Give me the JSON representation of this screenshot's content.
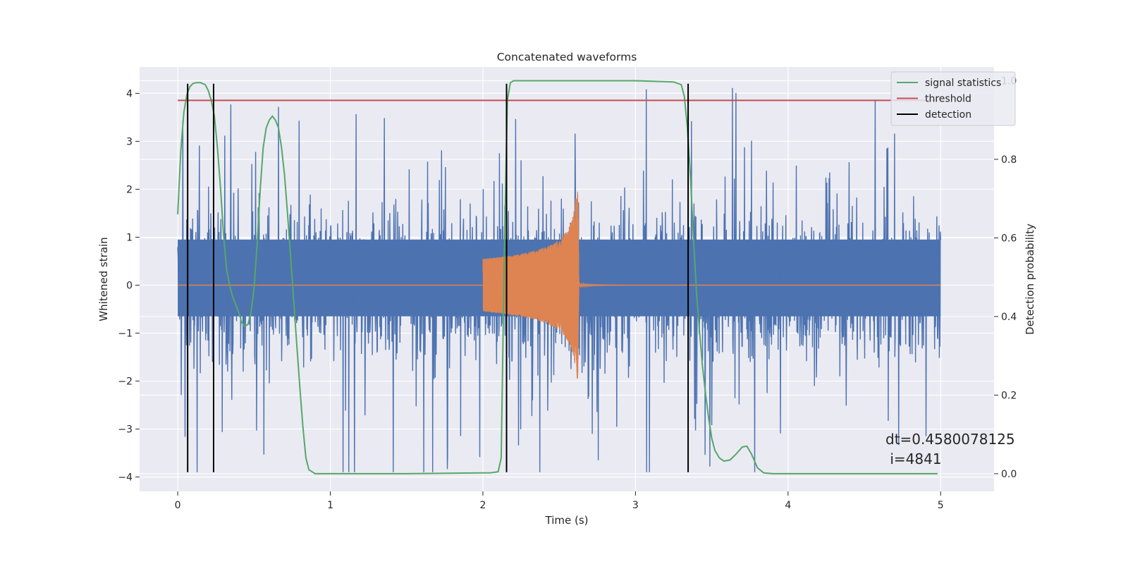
{
  "chart_data": {
    "type": "line",
    "title": "Concatenated waveforms",
    "xlabel": "Time (s)",
    "ylabel": "Whitened strain",
    "y2label": "Detection probability",
    "xlim": [
      -0.25,
      5.35
    ],
    "ylim": [
      -4.3,
      4.55
    ],
    "y2lim": [
      -0.045,
      1.035
    ],
    "x_ticks": [
      0,
      1,
      2,
      3,
      4,
      5
    ],
    "x_tick_labels": [
      "0",
      "1",
      "2",
      "3",
      "4",
      "5"
    ],
    "y_ticks": [
      -4,
      -3,
      -2,
      -1,
      0,
      1,
      2,
      3,
      4
    ],
    "y_tick_labels": [
      "−4",
      "−3",
      "−2",
      "−1",
      "0",
      "1",
      "2",
      "3",
      "4"
    ],
    "y2_ticks": [
      0.0,
      0.2,
      0.4,
      0.6,
      0.8,
      1.0
    ],
    "y2_tick_labels": [
      "0.0",
      "0.2",
      "0.4",
      "0.6",
      "0.8",
      "1.0"
    ],
    "grid": true,
    "legend_position": "top-right",
    "series": [
      {
        "name": "signal statistics",
        "axis": "right",
        "color": "#55a868",
        "x": [
          0.0,
          0.02,
          0.04,
          0.06,
          0.08,
          0.1,
          0.12,
          0.15,
          0.18,
          0.2,
          0.22,
          0.24,
          0.26,
          0.28,
          0.3,
          0.32,
          0.34,
          0.36,
          0.38,
          0.4,
          0.42,
          0.44,
          0.46,
          0.48,
          0.5,
          0.52,
          0.54,
          0.56,
          0.58,
          0.6,
          0.62,
          0.64,
          0.66,
          0.68,
          0.7,
          0.72,
          0.74,
          0.76,
          0.78,
          0.8,
          0.82,
          0.84,
          0.86,
          0.9,
          1.0,
          1.5,
          2.0,
          2.05,
          2.1,
          2.12,
          2.14,
          2.16,
          2.18,
          2.2,
          2.25,
          3.0,
          3.25,
          3.3,
          3.32,
          3.34,
          3.36,
          3.38,
          3.4,
          3.42,
          3.44,
          3.46,
          3.48,
          3.5,
          3.52,
          3.55,
          3.58,
          3.62,
          3.66,
          3.7,
          3.73,
          3.76,
          3.8,
          3.84,
          3.9,
          4.0,
          4.5,
          4.98
        ],
        "y": [
          0.66,
          0.82,
          0.92,
          0.965,
          0.985,
          0.993,
          0.995,
          0.995,
          0.99,
          0.975,
          0.95,
          0.91,
          0.83,
          0.73,
          0.61,
          0.52,
          0.48,
          0.45,
          0.43,
          0.41,
          0.385,
          0.375,
          0.38,
          0.41,
          0.47,
          0.58,
          0.72,
          0.83,
          0.88,
          0.9,
          0.91,
          0.9,
          0.88,
          0.83,
          0.76,
          0.66,
          0.55,
          0.44,
          0.33,
          0.22,
          0.12,
          0.04,
          0.01,
          0.0,
          0.0,
          0.0,
          0.002,
          0.002,
          0.005,
          0.04,
          0.55,
          0.95,
          0.995,
          1.0,
          1.0,
          1.0,
          0.997,
          0.99,
          0.96,
          0.88,
          0.76,
          0.6,
          0.46,
          0.36,
          0.27,
          0.2,
          0.14,
          0.09,
          0.06,
          0.04,
          0.032,
          0.035,
          0.05,
          0.068,
          0.07,
          0.05,
          0.015,
          0.002,
          0.0,
          0.0,
          0.0,
          0.0
        ]
      },
      {
        "name": "threshold",
        "axis": "right",
        "color": "#c44e52",
        "x": [
          0.0,
          4.98
        ],
        "y": [
          0.95,
          0.95
        ]
      },
      {
        "name": "detection",
        "axis": "left",
        "color": "#000000",
        "vlines": [
          0.065,
          0.235,
          2.155,
          3.345
        ],
        "ymin": -3.9,
        "ymax": 4.2
      }
    ],
    "strain_noise": {
      "color": "#4c72b0",
      "x_range": [
        0.0,
        5.0
      ],
      "core_band": [
        -0.65,
        0.95
      ],
      "max": 4.2,
      "min": -3.9
    },
    "injected_waveform": {
      "color": "#dd8452",
      "flat_range": [
        0.0,
        5.0
      ],
      "chirp_range": [
        2.0,
        2.63
      ],
      "start_amplitude": 0.55,
      "peak_value": 2.25,
      "trough_value": -1.95
    },
    "annotation": {
      "line1": "dt=0.4580078125",
      "line2": " i=4841"
    }
  }
}
